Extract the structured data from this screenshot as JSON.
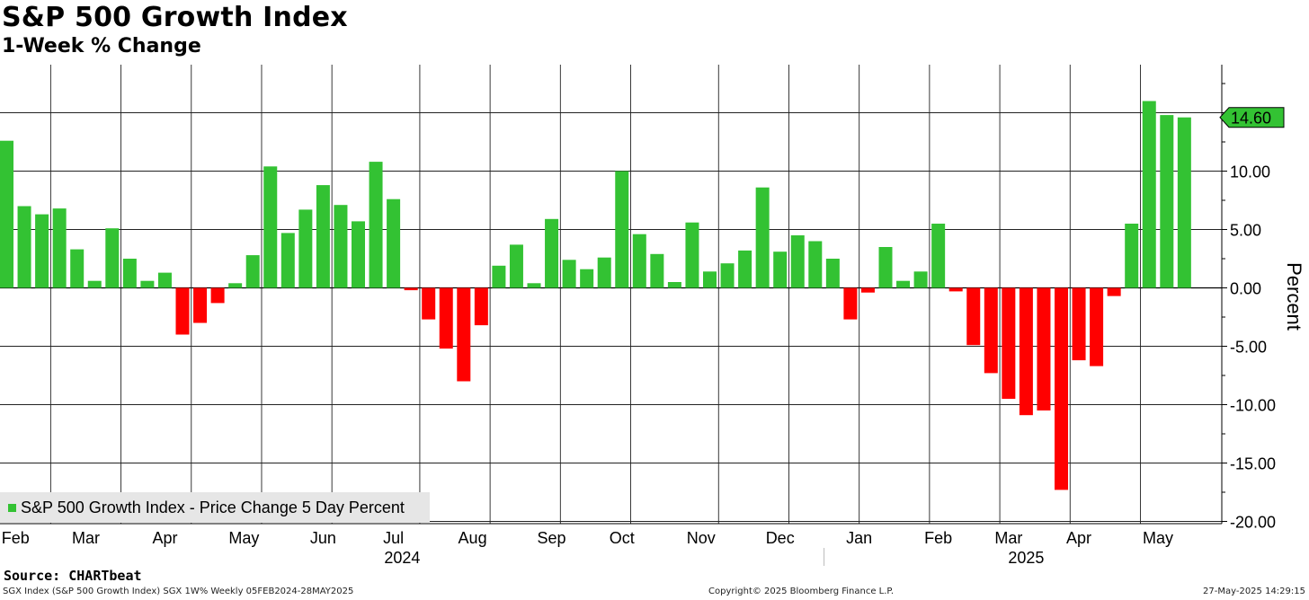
{
  "header": {
    "title": "S&P 500 Growth Index",
    "subtitle": "1-Week % Change"
  },
  "footer": {
    "source": "Source: CHARTbeat",
    "left": "SGX Index (S&P 500 Growth Index) SGX 1W% Weekly 05FEB2024-28MAY2025",
    "middle": "Copyright© 2025 Bloomberg Finance L.P.",
    "right": "27-May-2025 14:29:15"
  },
  "colors": {
    "positive": "#33c233",
    "negative": "#ff0000",
    "grid": "#000000",
    "last_value_tag": "#33c233"
  },
  "chart_data": {
    "type": "bar",
    "frequency": "weekly",
    "title": "S&P 500 Growth Index",
    "subtitle": "1-Week % Change",
    "ylabel": "Percent",
    "ylim": [
      -20.5,
      18
    ],
    "yticks": [
      -20.0,
      -15.0,
      -10.0,
      -5.0,
      0.0,
      5.0,
      10.0
    ],
    "ytick_labels": [
      "-20.00",
      "-15.00",
      "-10.00",
      "-5.00",
      "0.00",
      "5.00",
      "10.00"
    ],
    "last_value_label": "14.60",
    "last_value": 14.6,
    "month_labels": [
      {
        "label": "Feb",
        "index": 0.5
      },
      {
        "label": "Mar",
        "index": 4.5
      },
      {
        "label": "Apr",
        "index": 9
      },
      {
        "label": "May",
        "index": 13.5
      },
      {
        "label": "Jun",
        "index": 18
      },
      {
        "label": "Jul",
        "index": 22
      },
      {
        "label": "Aug",
        "index": 26.5
      },
      {
        "label": "Sep",
        "index": 31
      },
      {
        "label": "Oct",
        "index": 35
      },
      {
        "label": "Nov",
        "index": 39.5
      },
      {
        "label": "Dec",
        "index": 44
      },
      {
        "label": "Jan",
        "index": 48.5
      },
      {
        "label": "Feb",
        "index": 53
      },
      {
        "label": "Mar",
        "index": 57
      },
      {
        "label": "Apr",
        "index": 61
      },
      {
        "label": "May",
        "index": 65.5
      }
    ],
    "month_boundaries": [
      2.5,
      6.5,
      10.5,
      14.5,
      18.5,
      23.5,
      27.5,
      31.5,
      35.5,
      40.5,
      44.5,
      48.5,
      52.5,
      56.5,
      60.5,
      64.5
    ],
    "year_labels": [
      {
        "label": "2024",
        "index": 22.5
      },
      {
        "label": "2025",
        "index": 58
      }
    ],
    "year_divider_index": 46.5,
    "series": [
      {
        "name": "S&P 500 Growth Index - Price Change 5 Day Percent",
        "values": [
          12.6,
          7.0,
          6.3,
          6.8,
          3.3,
          0.6,
          5.1,
          2.5,
          0.6,
          1.3,
          -4.0,
          -3.0,
          -1.3,
          0.4,
          2.8,
          10.4,
          4.7,
          6.7,
          8.8,
          7.1,
          5.7,
          10.8,
          7.6,
          -0.2,
          -2.7,
          -5.2,
          -8.0,
          -3.2,
          1.9,
          3.7,
          0.4,
          5.9,
          2.4,
          1.6,
          2.6,
          10.0,
          4.6,
          2.9,
          0.5,
          5.6,
          1.4,
          2.1,
          3.2,
          8.6,
          3.1,
          4.5,
          4.0,
          2.5,
          -2.7,
          -0.4,
          3.5,
          0.6,
          1.4,
          5.5,
          -0.3,
          -4.9,
          -7.3,
          -9.5,
          -10.9,
          -10.5,
          -17.3,
          -6.2,
          -6.7,
          -0.7,
          5.5,
          16.0,
          14.8,
          14.6
        ]
      }
    ]
  }
}
